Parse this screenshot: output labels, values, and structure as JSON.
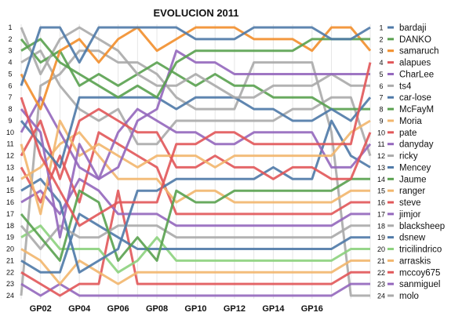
{
  "chart_data": {
    "type": "line",
    "title": "EVOLUCION 2011",
    "xlabel": "",
    "ylabel": "",
    "x": [
      1,
      2,
      3,
      4,
      5,
      6,
      7,
      8,
      9,
      10,
      11,
      12,
      13,
      14,
      15,
      16,
      17,
      18,
      19
    ],
    "x_tick_values": [
      2,
      4,
      6,
      8,
      10,
      12,
      14,
      16
    ],
    "x_tick_labels": [
      "GP02",
      "GP04",
      "GP06",
      "GP08",
      "GP10",
      "GP12",
      "GP14",
      "GP16"
    ],
    "ylim": [
      1,
      24
    ],
    "y_inverted": true,
    "grid": true,
    "legend_position": "right",
    "series": [
      {
        "name": "bardaji",
        "color": "#4E79A7",
        "values": [
          6,
          1,
          1,
          4,
          1,
          1,
          1,
          1,
          1,
          2,
          2,
          2,
          1,
          1,
          1,
          1,
          2,
          2,
          1
        ]
      },
      {
        "name": "DANKO",
        "color": "#59A14F",
        "values": [
          3,
          2,
          4,
          5,
          6,
          7,
          6,
          7,
          4,
          3,
          3,
          3,
          3,
          3,
          3,
          2,
          2,
          2,
          2
        ]
      },
      {
        "name": "samaruch",
        "color": "#F28E2B",
        "values": [
          5,
          8,
          3,
          2,
          4,
          2,
          1,
          3,
          2,
          1,
          1,
          1,
          2,
          2,
          2,
          3,
          1,
          1,
          3
        ]
      },
      {
        "name": "alapues",
        "color": "#E15759",
        "values": [
          7,
          12,
          15,
          18,
          17,
          16,
          16,
          16,
          11,
          11,
          10,
          10,
          11,
          11,
          11,
          11,
          11,
          11,
          4
        ]
      },
      {
        "name": "CharLee",
        "color": "#9467BD",
        "values": [
          8,
          10,
          19,
          11,
          14,
          13,
          9,
          8,
          3,
          4,
          4,
          5,
          5,
          5,
          5,
          5,
          5,
          5,
          5
        ]
      },
      {
        "name": "ts4",
        "color": "#AAAAAA",
        "values": [
          1,
          5,
          2,
          1,
          2,
          3,
          5,
          6,
          6,
          5,
          6,
          7,
          7,
          6,
          6,
          6,
          5,
          6,
          6
        ]
      },
      {
        "name": "car-lose",
        "color": "#4E79A7",
        "values": [
          9,
          11,
          13,
          7,
          7,
          7,
          7,
          7,
          8,
          7,
          7,
          7,
          8,
          8,
          9,
          9,
          8,
          9,
          7
        ]
      },
      {
        "name": "McFayM",
        "color": "#59A14F",
        "values": [
          2,
          4,
          3,
          6,
          5,
          6,
          5,
          4,
          5,
          6,
          5,
          6,
          6,
          7,
          7,
          7,
          8,
          8,
          8
        ]
      },
      {
        "name": "Moria",
        "color": "#F2B66D",
        "values": [
          11,
          17,
          9,
          12,
          11,
          12,
          13,
          12,
          12,
          12,
          13,
          12,
          12,
          12,
          12,
          12,
          12,
          10,
          9
        ]
      },
      {
        "name": "pate",
        "color": "#E15759",
        "values": [
          12,
          9,
          14,
          9,
          8,
          9,
          10,
          10,
          13,
          13,
          12,
          13,
          13,
          14,
          13,
          13,
          14,
          14,
          10
        ]
      },
      {
        "name": "danyday",
        "color": "#9467BD",
        "values": [
          10,
          7,
          10,
          13,
          14,
          10,
          8,
          9,
          10,
          10,
          11,
          11,
          10,
          10,
          10,
          10,
          13,
          13,
          11
        ]
      },
      {
        "name": "ricky",
        "color": "#AAAAAA",
        "values": [
          4,
          3,
          6,
          8,
          9,
          8,
          11,
          11,
          9,
          9,
          9,
          9,
          9,
          9,
          8,
          8,
          7,
          7,
          12
        ]
      },
      {
        "name": "Mencey",
        "color": "#4E79A7",
        "values": [
          15,
          14,
          16,
          22,
          21,
          20,
          15,
          15,
          14,
          14,
          14,
          14,
          14,
          13,
          14,
          14,
          9,
          12,
          13
        ]
      },
      {
        "name": "Jaume",
        "color": "#59A14F",
        "values": [
          17,
          19,
          21,
          15,
          16,
          21,
          19,
          21,
          15,
          16,
          16,
          15,
          15,
          15,
          15,
          15,
          15,
          14,
          14
        ]
      },
      {
        "name": "ranger",
        "color": "#F2B66D",
        "values": [
          14,
          13,
          11,
          10,
          12,
          14,
          14,
          14,
          16,
          15,
          15,
          16,
          16,
          16,
          16,
          16,
          16,
          15,
          15
        ]
      },
      {
        "name": "steve",
        "color": "#E15759",
        "values": [
          13,
          16,
          12,
          16,
          10,
          11,
          12,
          13,
          17,
          17,
          17,
          17,
          17,
          17,
          17,
          17,
          17,
          16,
          16
        ]
      },
      {
        "name": "jimjor",
        "color": "#9467BD",
        "values": [
          16,
          15,
          17,
          14,
          15,
          17,
          17,
          17,
          18,
          18,
          18,
          18,
          18,
          18,
          18,
          18,
          18,
          17,
          17
        ]
      },
      {
        "name": "blacksheep",
        "color": "#AAAAAA",
        "values": [
          18,
          20,
          18,
          19,
          19,
          18,
          18,
          18,
          19,
          19,
          19,
          19,
          19,
          19,
          19,
          19,
          19,
          18,
          18
        ]
      },
      {
        "name": "dsnew",
        "color": "#4E79A7",
        "values": [
          21,
          22,
          22,
          17,
          18,
          19,
          20,
          20,
          20,
          20,
          20,
          20,
          20,
          20,
          20,
          20,
          20,
          19,
          19
        ]
      },
      {
        "name": "tricilindrico",
        "color": "#8CD17D",
        "values": [
          19,
          18,
          20,
          20,
          20,
          22,
          21,
          19,
          21,
          21,
          21,
          21,
          21,
          21,
          21,
          21,
          21,
          20,
          20
        ]
      },
      {
        "name": "arraskis",
        "color": "#F2B66D",
        "values": [
          20,
          21,
          23,
          21,
          22,
          23,
          22,
          22,
          22,
          22,
          22,
          22,
          22,
          22,
          22,
          22,
          22,
          21,
          21
        ]
      },
      {
        "name": "mccoy675",
        "color": "#E15759",
        "values": [
          22,
          23,
          24,
          23,
          23,
          15,
          23,
          23,
          23,
          23,
          23,
          23,
          23,
          23,
          23,
          23,
          23,
          22,
          22
        ]
      },
      {
        "name": "sanmiguel",
        "color": "#9467BD",
        "values": [
          23,
          24,
          23,
          24,
          24,
          24,
          24,
          24,
          24,
          24,
          24,
          24,
          24,
          24,
          24,
          24,
          24,
          23,
          23
        ]
      },
      {
        "name": "molo",
        "color": "#AAAAAA",
        "values": [
          24,
          6,
          5,
          3,
          3,
          4,
          4,
          5,
          7,
          8,
          8,
          8,
          4,
          4,
          4,
          4,
          10,
          24,
          24
        ]
      }
    ]
  }
}
